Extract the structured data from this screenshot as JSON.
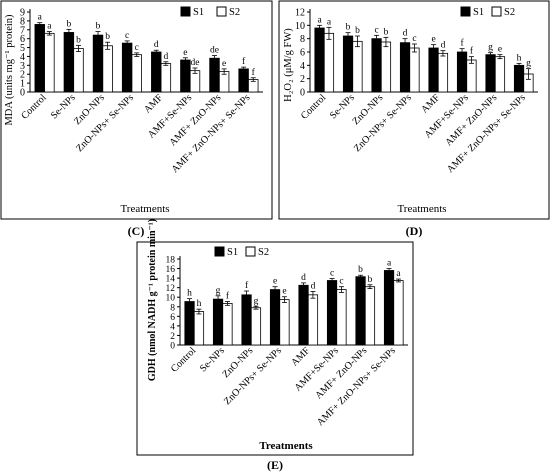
{
  "figure": {
    "panels": [
      {
        "id": "C",
        "label": "(C)",
        "ylabel": "MDA (units mg⁻¹ protein)",
        "xlabel": "Treatments",
        "legend": [
          "S1",
          "S2"
        ],
        "legend_position": "top-right",
        "ylim": [
          0,
          9
        ],
        "ystep": 1,
        "colors": {
          "S1": "#000000",
          "S2": "#ffffff"
        }
      },
      {
        "id": "D",
        "label": "(D)",
        "ylabel": "H₂O₂ (μM/g FW)",
        "xlabel": "Treatments",
        "legend": [
          "S1",
          "S2"
        ],
        "legend_position": "top-right",
        "ylim": [
          0,
          12
        ],
        "ystep": 2,
        "colors": {
          "S1": "#000000",
          "S2": "#ffffff"
        }
      },
      {
        "id": "E",
        "label": "(E)",
        "ylabel": "GDH (nmol NADH g⁻¹ protein min⁻¹)",
        "xlabel": "Treatments",
        "legend": [
          "S1",
          "S2"
        ],
        "legend_position": "top-left",
        "ylim": [
          0,
          18
        ],
        "ystep": 2,
        "colors": {
          "S1": "#000000",
          "S2": "#ffffff"
        }
      }
    ]
  },
  "chart_data": [
    {
      "type": "bar",
      "panel": "(C)",
      "categories": [
        "Control",
        "Se-NPs",
        "ZnO-NPs",
        "ZnO-NPs+ Se-NPs",
        "AMF",
        "AMF+Se-NPs",
        "AMF+ ZnO-NPs",
        "AMF+ ZnO-NPs+ Se-NPs"
      ],
      "series": [
        {
          "name": "S1",
          "values": [
            7.6,
            6.7,
            6.4,
            5.5,
            4.5,
            3.6,
            3.8,
            2.6
          ],
          "errors": [
            0.2,
            0.35,
            0.4,
            0.25,
            0.2,
            0.25,
            0.3,
            0.2
          ],
          "letters": [
            "a",
            "b",
            "b",
            "c",
            "d",
            "e",
            "de",
            "f"
          ]
        },
        {
          "name": "S2",
          "values": [
            6.6,
            4.9,
            5.2,
            4.2,
            3.2,
            2.4,
            2.3,
            1.4
          ],
          "errors": [
            0.2,
            0.35,
            0.4,
            0.2,
            0.2,
            0.3,
            0.3,
            0.2
          ],
          "letters": [
            "a",
            "b",
            "b",
            "c",
            "d",
            "de",
            "e",
            "f"
          ]
        }
      ],
      "xlabel": "Treatments",
      "ylabel": "MDA (units mg⁻¹ protein)",
      "ylim": [
        0,
        9
      ],
      "grid": false,
      "legend": "top-right"
    },
    {
      "type": "bar",
      "panel": "(D)",
      "categories": [
        "Control",
        "Se-NPs",
        "ZnO-NPs",
        "ZnO-NPs+ Se-NPs",
        "AMF",
        "AMF+Se-NPs",
        "AMF+ ZnO-NPs",
        "AMF+ ZnO-NPs+ Se-NPs"
      ],
      "series": [
        {
          "name": "S1",
          "values": [
            9.6,
            8.4,
            8.0,
            7.4,
            6.6,
            6.0,
            5.6,
            4.0
          ],
          "errors": [
            0.4,
            0.5,
            0.5,
            0.6,
            0.5,
            0.5,
            0.3,
            0.3
          ],
          "letters": [
            "a",
            "b",
            "c",
            "d",
            "e",
            "f",
            "g",
            "h"
          ]
        },
        {
          "name": "S2",
          "values": [
            8.8,
            7.6,
            7.5,
            6.6,
            5.8,
            4.8,
            5.3,
            2.7
          ],
          "errors": [
            0.9,
            0.8,
            0.7,
            0.6,
            0.4,
            0.5,
            0.3,
            0.8
          ],
          "letters": [
            "a",
            "b",
            "b",
            "c",
            "d",
            "f",
            "e",
            "g"
          ]
        }
      ],
      "xlabel": "Treatments",
      "ylabel": "H₂O₂ (μM/g FW)",
      "ylim": [
        0,
        12
      ],
      "grid": false,
      "legend": "top-right"
    },
    {
      "type": "bar",
      "panel": "(E)",
      "categories": [
        "Control",
        "Se-NPs",
        "ZnO-NPs",
        "ZnO-NPs+ Se-NPs",
        "AMF",
        "AMF+Se-NPs",
        "AMF+ ZnO-NPs",
        "AMF+ ZnO-NPs+ Se-NPs"
      ],
      "series": [
        {
          "name": "S1",
          "values": [
            9.1,
            9.6,
            10.5,
            11.6,
            12.5,
            13.5,
            14.3,
            15.6
          ],
          "errors": [
            0.6,
            0.7,
            0.8,
            0.6,
            0.5,
            0.4,
            0.3,
            0.4
          ],
          "letters": [
            "h",
            "g",
            "f",
            "e",
            "d",
            "c",
            "b",
            "a"
          ]
        },
        {
          "name": "S2",
          "values": [
            7.0,
            8.7,
            7.8,
            9.5,
            10.5,
            11.6,
            12.2,
            13.5
          ],
          "errors": [
            0.5,
            0.4,
            0.3,
            0.6,
            0.7,
            0.6,
            0.4,
            0.3
          ],
          "letters": [
            "h",
            "f",
            "g",
            "e",
            "d",
            "c",
            "b",
            "a"
          ]
        }
      ],
      "xlabel": "Treatments",
      "ylabel": "GDH (nmol NADH g⁻¹ protein min⁻¹)",
      "ylim": [
        0,
        18
      ],
      "grid": false,
      "legend": "top-left"
    }
  ]
}
